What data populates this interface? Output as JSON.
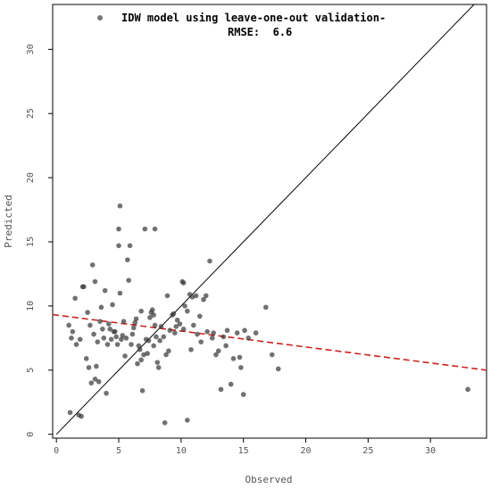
{
  "chart_data": {
    "type": "scatter",
    "xlabel": "Observed",
    "ylabel": "Predicted",
    "xlim": [
      -0.3,
      34.5
    ],
    "ylim": [
      -0.3,
      33.5
    ],
    "x_ticks": [
      0,
      5,
      10,
      15,
      20,
      25,
      30
    ],
    "y_ticks": [
      0,
      5,
      10,
      15,
      20,
      25,
      30
    ],
    "grid": false,
    "legend": {
      "placement": "top",
      "line1": "IDW model using leave-one-out validation-",
      "line2": "RMSE:  6.6",
      "marker_color": "#555555"
    },
    "colors": {
      "points": "#3a3a3a",
      "identity_line": "#000000",
      "regression_line": "#cc2222",
      "frame": "#000000"
    },
    "reference_lines": [
      {
        "name": "1:1 line",
        "style": "solid",
        "x": [
          0,
          34.5
        ],
        "y": [
          0,
          34.5
        ]
      },
      {
        "name": "regression",
        "style": "dashed",
        "x": [
          -0.3,
          34.5
        ],
        "y": [
          9.33,
          5.0
        ]
      }
    ],
    "points": {
      "x": [
        1.0,
        1.2,
        1.3,
        1.6,
        1.9,
        2.2,
        2.5,
        2.7,
        2.9,
        3.0,
        3.1,
        3.3,
        3.5,
        3.6,
        3.8,
        3.9,
        4.1,
        4.2,
        4.3,
        4.5,
        4.6,
        4.8,
        5.0,
        5.1,
        5.2,
        5.3,
        5.4,
        5.5,
        5.7,
        5.9,
        6.0,
        6.1,
        6.2,
        6.4,
        6.6,
        6.8,
        7.0,
        7.1,
        7.2,
        7.4,
        7.5,
        7.7,
        7.8,
        7.9,
        8.0,
        8.2,
        8.4,
        8.6,
        8.8,
        8.9,
        9.1,
        9.3,
        9.5,
        9.7,
        9.9,
        10.1,
        10.3,
        10.5,
        10.7,
        10.9,
        11.0,
        11.3,
        11.6,
        11.8,
        12.0,
        12.3,
        12.6,
        13.0,
        13.4,
        13.7,
        14.0,
        14.5,
        14.8,
        15.1,
        15.4,
        16.0,
        16.8,
        17.3,
        17.8,
        33.0,
        1.1,
        1.8,
        2.4,
        3.2,
        4.0,
        5.1,
        6.9,
        7.6,
        8.7,
        10.5,
        1.5,
        2.1,
        2.8,
        3.7,
        4.7,
        5.6,
        6.3,
        7.3,
        8.1,
        9.6,
        11.2,
        12.1,
        13.2,
        14.2,
        15.0,
        4.4,
        5.8,
        6.7,
        8.3,
        9.0,
        10.2,
        11.5,
        12.5,
        13.6,
        14.7,
        2.6,
        3.4,
        4.9,
        6.5,
        7.9,
        9.4,
        10.8,
        12.8,
        2.0,
        5.0,
        6.8,
        7.8,
        10.2,
        3.1
      ],
      "y": [
        8.5,
        7.5,
        8.0,
        7.0,
        7.4,
        11.5,
        9.5,
        8.5,
        13.2,
        7.8,
        11.9,
        7.2,
        8.8,
        9.9,
        7.5,
        11.2,
        7.0,
        8.6,
        8.2,
        10.1,
        8.0,
        7.6,
        16.0,
        11.0,
        7.4,
        7.7,
        8.8,
        6.1,
        13.6,
        14.7,
        7.0,
        7.8,
        8.3,
        9.0,
        6.9,
        9.6,
        6.2,
        16.0,
        7.4,
        7.3,
        9.1,
        9.7,
        6.9,
        16.0,
        7.6,
        5.2,
        8.4,
        7.6,
        6.2,
        10.8,
        8.1,
        9.3,
        7.9,
        8.9,
        8.6,
        11.9,
        10.0,
        9.6,
        10.9,
        10.7,
        8.5,
        7.8,
        7.2,
        10.5,
        10.8,
        13.5,
        7.9,
        6.5,
        7.6,
        8.1,
        3.9,
        7.9,
        5.2,
        8.1,
        7.5,
        7.9,
        9.9,
        6.2,
        5.1,
        3.5,
        1.7,
        1.5,
        5.9,
        5.3,
        3.2,
        17.8,
        3.4,
        9.5,
        0.9,
        1.1,
        10.6,
        11.5,
        4.0,
        8.2,
        8.0,
        7.5,
        8.7,
        6.3,
        5.6,
        8.4,
        10.8,
        8.0,
        3.5,
        5.9,
        3.1,
        7.4,
        12.0,
        6.6,
        7.3,
        6.5,
        8.2,
        9.2,
        7.5,
        6.9,
        6.0,
        5.2,
        4.1,
        7.0,
        5.5,
        8.5,
        9.4,
        6.6,
        6.2,
        1.4,
        14.7,
        5.8,
        9.3,
        11.8,
        4.3
      ]
    }
  }
}
